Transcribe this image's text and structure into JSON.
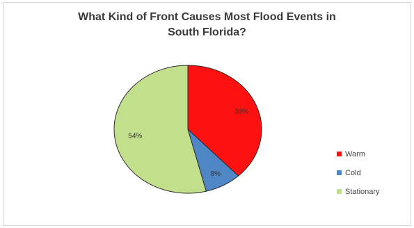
{
  "chart_data": {
    "type": "pie",
    "title_line1": "What Kind of Front Causes Most Flood Events in",
    "title_line2": "South Florida?",
    "slices": [
      {
        "name": "Warm",
        "value": 38,
        "label": "38%",
        "color": "#ff1111"
      },
      {
        "name": "Cold",
        "value": 8,
        "label": "8%",
        "color": "#4f86c6"
      },
      {
        "name": "Stationary",
        "value": 54,
        "label": "54%",
        "color": "#c2e08c"
      }
    ],
    "legend_position": "right"
  }
}
